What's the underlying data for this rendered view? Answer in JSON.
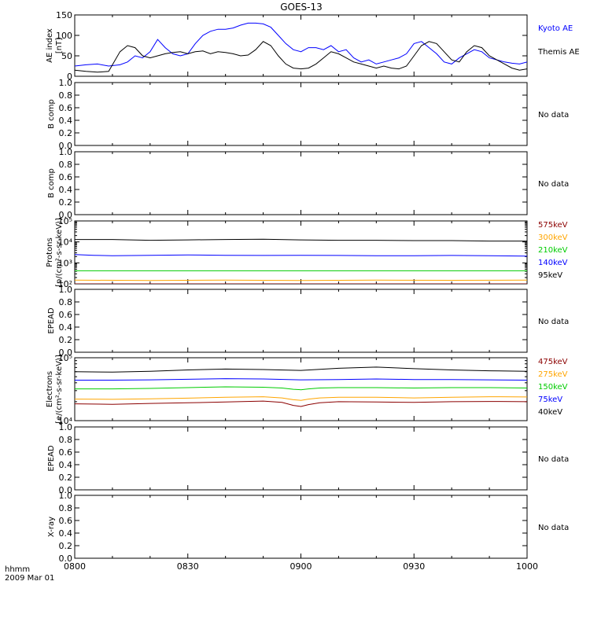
{
  "title": "GOES-13",
  "time_axis": {
    "label_line1": "hhmm",
    "label_line2": "2009 Mar 01",
    "ticks": [
      "0800",
      "0830",
      "0900",
      "0930",
      "1000"
    ],
    "start_min": 0,
    "end_min": 120
  },
  "colors": {
    "black": "#000000",
    "blue": "#0000ff",
    "green": "#00cc00",
    "orange": "#ffa500",
    "darkred": "#8b0000"
  },
  "chart_data": [
    {
      "type": "line",
      "panel": "ae",
      "ylabel": "AE index",
      "yunit": "[nT]",
      "ylim": [
        0,
        150
      ],
      "yticks": [
        "0",
        "50",
        "100",
        "150"
      ],
      "x_unit": "minutes after 0800",
      "series": [
        {
          "name": "Kyoto AE",
          "color": "blue",
          "x": [
            0,
            3,
            6,
            9,
            12,
            14,
            16,
            18,
            20,
            22,
            24,
            26,
            28,
            30,
            32,
            34,
            36,
            38,
            40,
            42,
            44,
            46,
            48,
            50,
            52,
            54,
            56,
            58,
            60,
            62,
            64,
            66,
            68,
            70,
            72,
            74,
            76,
            78,
            80,
            82,
            84,
            86,
            88,
            90,
            92,
            94,
            96,
            98,
            100,
            102,
            104,
            106,
            108,
            110,
            112,
            114,
            116,
            118,
            120
          ],
          "y": [
            25,
            28,
            30,
            25,
            28,
            35,
            50,
            45,
            60,
            90,
            70,
            55,
            50,
            55,
            80,
            100,
            110,
            115,
            115,
            118,
            125,
            130,
            130,
            128,
            120,
            100,
            80,
            65,
            60,
            70,
            70,
            65,
            75,
            60,
            65,
            45,
            35,
            40,
            30,
            35,
            40,
            45,
            55,
            80,
            85,
            70,
            55,
            35,
            30,
            45,
            55,
            65,
            60,
            45,
            40,
            35,
            32,
            30,
            35
          ]
        },
        {
          "name": "Themis AE",
          "color": "black",
          "x": [
            0,
            3,
            6,
            9,
            12,
            14,
            16,
            18,
            20,
            22,
            24,
            26,
            28,
            30,
            32,
            34,
            36,
            38,
            40,
            42,
            44,
            46,
            48,
            50,
            52,
            54,
            56,
            58,
            60,
            62,
            64,
            66,
            68,
            70,
            72,
            74,
            76,
            78,
            80,
            82,
            84,
            86,
            88,
            90,
            92,
            94,
            96,
            98,
            100,
            102,
            104,
            106,
            108,
            110,
            112,
            114,
            116,
            118,
            120
          ],
          "y": [
            15,
            12,
            10,
            12,
            60,
            75,
            70,
            50,
            45,
            50,
            55,
            58,
            60,
            55,
            60,
            62,
            55,
            60,
            58,
            55,
            50,
            52,
            65,
            85,
            75,
            50,
            30,
            20,
            18,
            20,
            30,
            45,
            60,
            55,
            45,
            35,
            30,
            25,
            20,
            25,
            20,
            18,
            25,
            50,
            75,
            85,
            80,
            60,
            40,
            35,
            60,
            75,
            70,
            50,
            40,
            30,
            20,
            15,
            18
          ]
        }
      ]
    },
    {
      "type": "line",
      "panel": "bcomp1",
      "ylabel": "B comp",
      "ylim": [
        0,
        1
      ],
      "yticks": [
        "0.0",
        "0.2",
        "0.4",
        "0.6",
        "0.8",
        "1.0"
      ],
      "note": "No data",
      "series": []
    },
    {
      "type": "line",
      "panel": "bcomp2",
      "ylabel": "B comp",
      "ylim": [
        0,
        1
      ],
      "yticks": [
        "0.0",
        "0.2",
        "0.4",
        "0.6",
        "0.8",
        "1.0"
      ],
      "note": "No data",
      "series": []
    },
    {
      "type": "line",
      "panel": "protons",
      "ylabel": "Protons",
      "yunit": "[p/(cm²-s-sr-keV)]",
      "yscale": "log",
      "ylim": [
        100,
        100000
      ],
      "yticks": [
        "10²",
        "10³",
        "10⁴",
        "10⁵"
      ],
      "series": [
        {
          "name": "575keV",
          "color": "darkred",
          "x": [
            0,
            30,
            60,
            90,
            120
          ],
          "y": [
            100,
            100,
            100,
            100,
            100
          ]
        },
        {
          "name": "300keV",
          "color": "orange",
          "x": [
            0,
            20,
            40,
            60,
            80,
            100,
            120
          ],
          "y": [
            150,
            145,
            150,
            145,
            150,
            148,
            150
          ]
        },
        {
          "name": "210keV",
          "color": "green",
          "x": [
            0,
            30,
            60,
            90,
            120
          ],
          "y": [
            420,
            420,
            420,
            420,
            420
          ]
        },
        {
          "name": "140keV",
          "color": "blue",
          "x": [
            0,
            5,
            10,
            20,
            30,
            40,
            50,
            60,
            70,
            80,
            90,
            100,
            110,
            120
          ],
          "y": [
            2500,
            2300,
            2200,
            2300,
            2400,
            2300,
            2250,
            2300,
            2250,
            2200,
            2200,
            2250,
            2200,
            2100
          ]
        },
        {
          "name": "95keV",
          "color": "black",
          "x": [
            0,
            10,
            20,
            30,
            40,
            50,
            60,
            70,
            80,
            90,
            100,
            110,
            120
          ],
          "y": [
            13000,
            13000,
            12000,
            12500,
            13000,
            13500,
            12500,
            12000,
            12000,
            11500,
            11500,
            11000,
            11000
          ]
        }
      ]
    },
    {
      "type": "line",
      "panel": "epead1",
      "ylabel": "EPEAD",
      "ylim": [
        0,
        1
      ],
      "yticks": [
        "0.0",
        "0.2",
        "0.4",
        "0.6",
        "0.8",
        "1.0"
      ],
      "note": "No data",
      "series": []
    },
    {
      "type": "line",
      "panel": "electrons",
      "ylabel": "Electrons",
      "yunit": "[e/(cm²-s-sr-keV)]",
      "yscale": "log",
      "ylim": [
        10000,
        100000
      ],
      "yticks": [
        "10⁴",
        "10⁵"
      ],
      "series": [
        {
          "name": "475keV",
          "color": "darkred",
          "x": [
            0,
            10,
            20,
            30,
            40,
            50,
            55,
            58,
            60,
            62,
            65,
            70,
            80,
            90,
            100,
            110,
            120
          ],
          "y": [
            18500,
            18200,
            18800,
            19200,
            19800,
            20500,
            19500,
            17500,
            16800,
            18000,
            19200,
            20000,
            19800,
            19500,
            20000,
            20200,
            20000
          ]
        },
        {
          "name": "275keV",
          "color": "orange",
          "x": [
            0,
            10,
            20,
            30,
            40,
            50,
            55,
            58,
            60,
            62,
            65,
            70,
            80,
            90,
            100,
            110,
            120
          ],
          "y": [
            22000,
            21800,
            22200,
            22800,
            23500,
            24000,
            23000,
            21500,
            21000,
            22000,
            23000,
            23500,
            23500,
            23000,
            23500,
            24000,
            23800
          ]
        },
        {
          "name": "150keV",
          "color": "green",
          "x": [
            0,
            10,
            20,
            30,
            40,
            50,
            55,
            58,
            60,
            62,
            65,
            70,
            80,
            90,
            100,
            110,
            120
          ],
          "y": [
            32000,
            32000,
            32500,
            33500,
            34500,
            34000,
            33000,
            31500,
            31000,
            32000,
            33000,
            33500,
            33500,
            33000,
            33500,
            33500,
            33000
          ]
        },
        {
          "name": "75keV",
          "color": "blue",
          "x": [
            0,
            10,
            20,
            30,
            40,
            50,
            60,
            70,
            80,
            90,
            100,
            110,
            120
          ],
          "y": [
            44000,
            44000,
            44500,
            45500,
            46500,
            46000,
            44500,
            45000,
            46000,
            45000,
            45000,
            44500,
            44000
          ]
        },
        {
          "name": "40keV",
          "color": "black",
          "x": [
            0,
            10,
            20,
            30,
            40,
            50,
            60,
            70,
            80,
            90,
            100,
            110,
            120
          ],
          "y": [
            60000,
            59000,
            61000,
            64000,
            66000,
            65000,
            63000,
            68000,
            71000,
            67000,
            64000,
            62000,
            61000
          ]
        }
      ]
    },
    {
      "type": "line",
      "panel": "epead2",
      "ylabel": "EPEAD",
      "ylim": [
        0,
        1
      ],
      "yticks": [
        "0.0",
        "0.2",
        "0.4",
        "0.6",
        "0.8",
        "1.0"
      ],
      "note": "No data",
      "series": []
    },
    {
      "type": "line",
      "panel": "xray",
      "ylabel": "X-ray",
      "ylim": [
        0,
        1
      ],
      "yticks": [
        "0.0",
        "0.2",
        "0.4",
        "0.6",
        "0.8",
        "1.0"
      ],
      "note": "No data",
      "series": []
    }
  ]
}
